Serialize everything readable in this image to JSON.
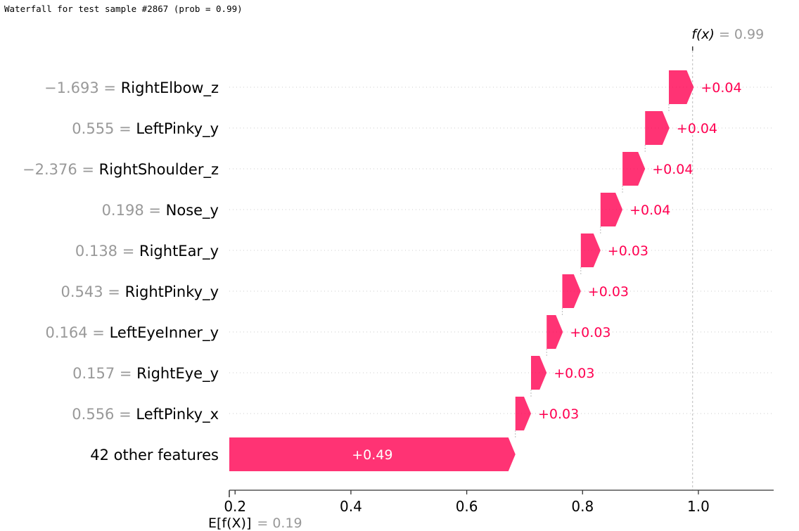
{
  "page_title": "Waterfall for test sample #2867 (prob = 0.99)",
  "chart_data": {
    "type": "waterfall",
    "fx": {
      "label": "f(x)",
      "value": 0.99,
      "value_text": "= 0.99"
    },
    "base": {
      "label": "E[f(X)]",
      "value": 0.19,
      "value_text": "= 0.19"
    },
    "xlim": [
      0.19,
      1.13
    ],
    "ticks": [
      0.2,
      0.4,
      0.6,
      0.8,
      1.0
    ],
    "tick_labels": [
      "0.2",
      "0.4",
      "0.6",
      "0.8",
      "1.0"
    ],
    "features": [
      {
        "value": "−1.693",
        "name": "RightElbow_z",
        "start": 0.949,
        "contribution": 0.043,
        "label": "+0.04"
      },
      {
        "value": "0.555",
        "name": "LeftPinky_y",
        "start": 0.908,
        "contribution": 0.042,
        "label": "+0.04"
      },
      {
        "value": "−2.376",
        "name": "RightShoulder_z",
        "start": 0.869,
        "contribution": 0.039,
        "label": "+0.04"
      },
      {
        "value": "0.198",
        "name": "Nose_y",
        "start": 0.831,
        "contribution": 0.038,
        "label": "+0.04"
      },
      {
        "value": "0.138",
        "name": "RightEar_y",
        "start": 0.797,
        "contribution": 0.034,
        "label": "+0.03"
      },
      {
        "value": "0.543",
        "name": "RightPinky_y",
        "start": 0.765,
        "contribution": 0.032,
        "label": "+0.03"
      },
      {
        "value": "0.164",
        "name": "LeftEyeInner_y",
        "start": 0.738,
        "contribution": 0.028,
        "label": "+0.03"
      },
      {
        "value": "0.157",
        "name": "RightEye_y",
        "start": 0.711,
        "contribution": 0.027,
        "label": "+0.03"
      },
      {
        "value": "0.556",
        "name": "LeftPinky_x",
        "start": 0.684,
        "contribution": 0.027,
        "label": "+0.03"
      },
      {
        "value": "",
        "name": "42 other features",
        "start": 0.19,
        "contribution": 0.494,
        "label": "+0.49"
      }
    ],
    "colors": {
      "positive": "#ff0051",
      "muted": "#999999",
      "text": "#000000",
      "axis": "#333333"
    }
  }
}
